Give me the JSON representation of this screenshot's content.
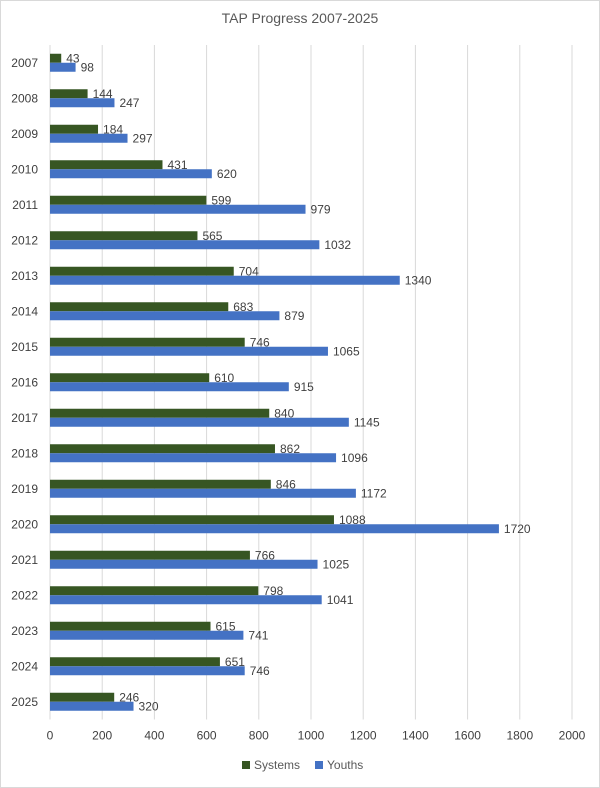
{
  "chart_data": {
    "type": "bar",
    "orientation": "horizontal",
    "title": "TAP Progress 2007-2025",
    "categories": [
      "2007",
      "2008",
      "2009",
      "2010",
      "2011",
      "2012",
      "2013",
      "2014",
      "2015",
      "2016",
      "2017",
      "2018",
      "2019",
      "2020",
      "2021",
      "2022",
      "2023",
      "2024",
      "2025"
    ],
    "series": [
      {
        "name": "Systems",
        "color": "#375623",
        "values": [
          43,
          144,
          184,
          431,
          599,
          565,
          704,
          683,
          746,
          610,
          840,
          862,
          846,
          1088,
          766,
          798,
          615,
          651,
          246
        ]
      },
      {
        "name": "Youths",
        "color": "#4472c4",
        "values": [
          98,
          247,
          297,
          620,
          979,
          1032,
          1340,
          879,
          1065,
          915,
          1145,
          1096,
          1172,
          1720,
          1025,
          1041,
          741,
          746,
          320
        ]
      }
    ],
    "xlim": [
      0,
      2000
    ],
    "xticks": [
      "0",
      "200",
      "400",
      "600",
      "800",
      "1000",
      "1200",
      "1400",
      "1600",
      "1800",
      "2000"
    ],
    "grid": true,
    "legend_position": "bottom",
    "data_labels": true
  }
}
